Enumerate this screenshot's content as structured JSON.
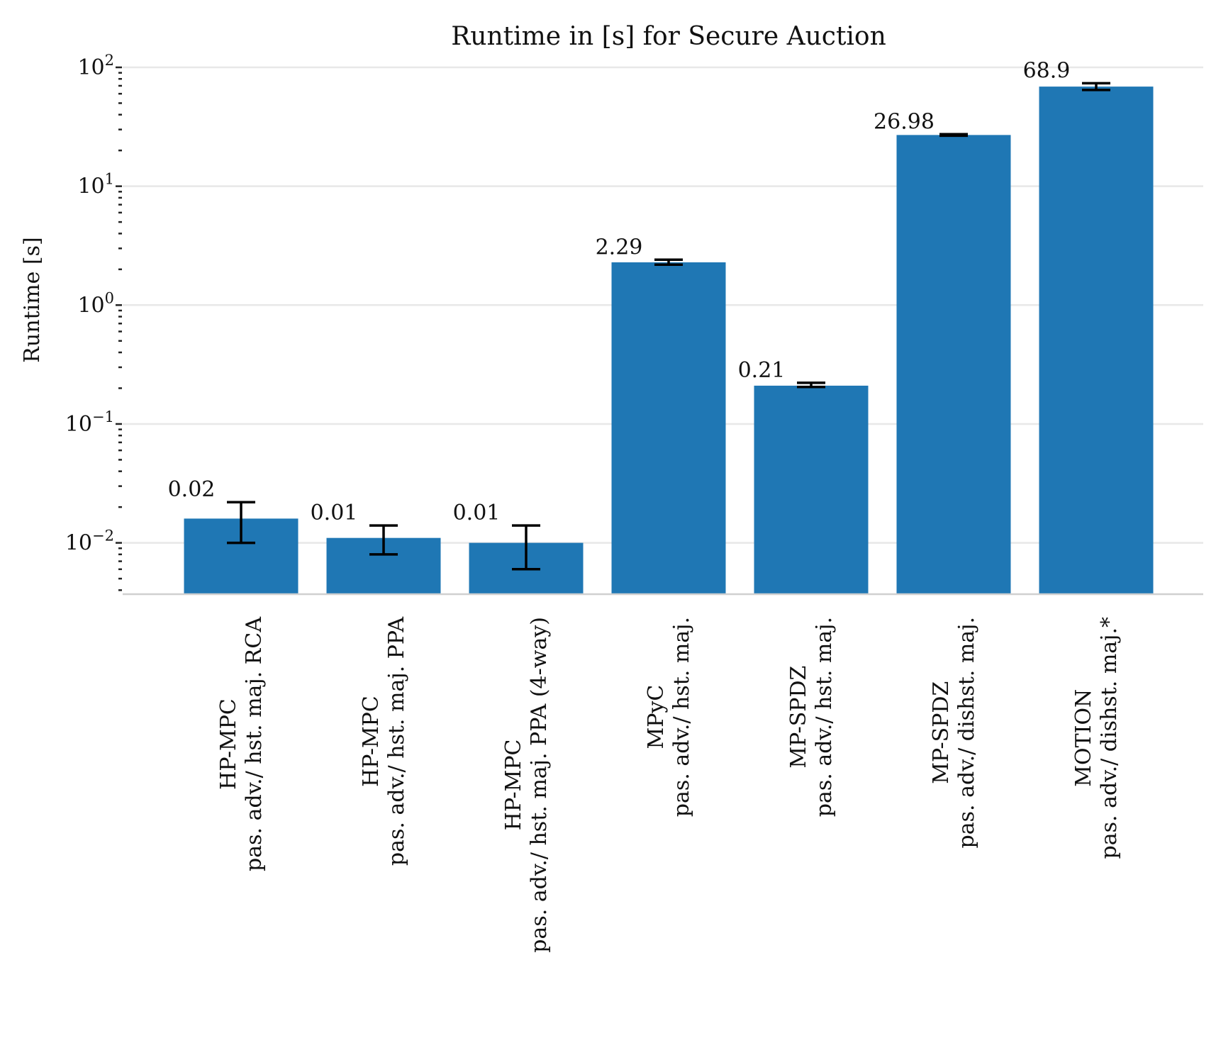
{
  "chart_data": {
    "type": "bar",
    "title": "Runtime in [s] for Secure Auction",
    "xlabel": "",
    "ylabel": "Runtime [s]",
    "yscale": "log",
    "ylim": [
      0.0037,
      100
    ],
    "yticks": [
      {
        "value": 0.01,
        "base": "10",
        "exp": "−2"
      },
      {
        "value": 0.1,
        "base": "10",
        "exp": "−1"
      },
      {
        "value": 1,
        "base": "10",
        "exp": "0"
      },
      {
        "value": 10,
        "base": "10",
        "exp": "1"
      },
      {
        "value": 100,
        "base": "10",
        "exp": "2"
      }
    ],
    "grid": true,
    "bar_color": "#1f77b4",
    "error_color": "#000000",
    "bars": [
      {
        "framework": "HP-MPC",
        "setting": "pas. adv./ hst. maj. RCA",
        "value": 0.016,
        "label": "0.02",
        "err_low": 0.01,
        "err_high": 0.022
      },
      {
        "framework": "HP-MPC",
        "setting": "pas. adv./ hst. maj. PPA",
        "value": 0.011,
        "label": "0.01",
        "err_low": 0.008,
        "err_high": 0.014
      },
      {
        "framework": "HP-MPC",
        "setting": "pas. adv./ hst. maj. PPA (4-way)",
        "value": 0.01,
        "label": "0.01",
        "err_low": 0.006,
        "err_high": 0.014
      },
      {
        "framework": "MPyC",
        "setting": "pas. adv./ hst. maj.",
        "value": 2.29,
        "label": "2.29",
        "err_low": 2.19,
        "err_high": 2.41
      },
      {
        "framework": "MP-SPDZ",
        "setting": "pas. adv./ hst. maj.",
        "value": 0.21,
        "label": "0.21",
        "err_low": 0.205,
        "err_high": 0.222
      },
      {
        "framework": "MP-SPDZ",
        "setting": "pas. adv./ dishst. maj.",
        "value": 26.98,
        "label": "26.98",
        "err_low": 26.6,
        "err_high": 27.4
      },
      {
        "framework": "MOTION",
        "setting": "pas. adv./ dishst. maj.*",
        "value": 68.9,
        "label": "68.9",
        "err_low": 64.5,
        "err_high": 73.5
      }
    ]
  }
}
